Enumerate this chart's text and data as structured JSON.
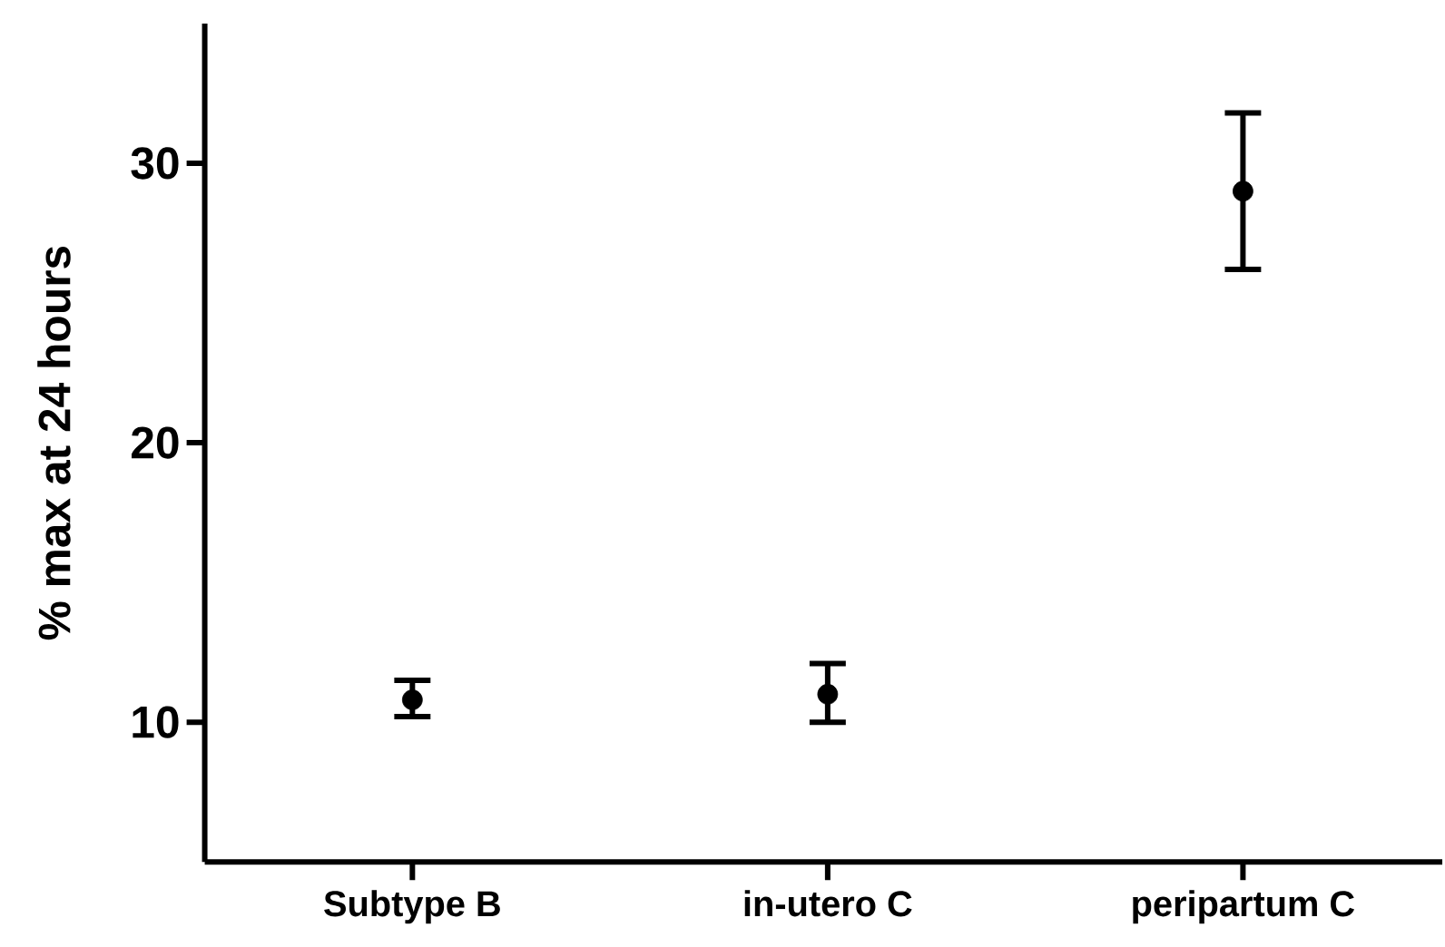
{
  "chart_data": {
    "type": "scatter",
    "ylabel": "% max at 24 hours",
    "categories": [
      "Subtype B",
      "in-utero C",
      "peripartum C"
    ],
    "values": [
      10.8,
      11.0,
      29.0
    ],
    "errors": [
      [
        10.2,
        11.5
      ],
      [
        10.0,
        12.1
      ],
      [
        26.2,
        31.8
      ]
    ],
    "color": "#000000",
    "marker": "circle",
    "ylim": [
      5,
      35
    ],
    "yticks": [
      10,
      20,
      30
    ]
  }
}
